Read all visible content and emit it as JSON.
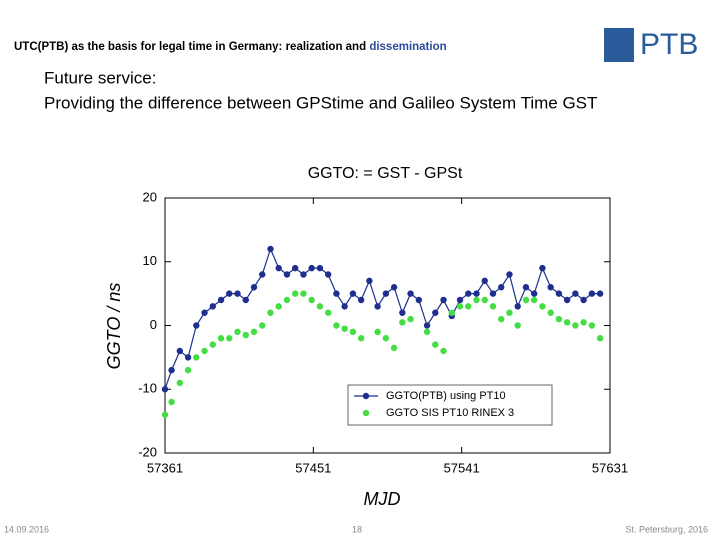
{
  "header": {
    "title": "UTC(PTB) as the basis for legal time in Germany: realization and ",
    "highlight": "dissemination",
    "logo": "PTB"
  },
  "subtitle": [
    "Future service:",
    "Providing the difference between GPStime and Galileo System Time GST"
  ],
  "footer": {
    "date": "14.09.2016",
    "page": "18",
    "place": "St. Petersburg, 2016"
  },
  "chart_data": {
    "type": "scatter",
    "title": "GGTO: = GST - GPSt",
    "xlabel": "MJD",
    "ylabel": "GGTO / ns",
    "x": [
      57361,
      57365,
      57370,
      57375,
      57380,
      57385,
      57390,
      57395,
      57400,
      57405,
      57410,
      57415,
      57420,
      57425,
      57430,
      57435,
      57440,
      57445,
      57450,
      57455,
      57460,
      57465,
      57470,
      57475,
      57480,
      57485,
      57490,
      57495,
      57500,
      57505,
      57510,
      57515,
      57520,
      57525,
      57530,
      57535,
      57540,
      57545,
      57550,
      57555,
      57560,
      57565,
      57570,
      57575,
      57580,
      57585,
      57590,
      57595,
      57600,
      57605,
      57610,
      57615,
      57620,
      57625
    ],
    "series": [
      {
        "name": "GGTO(PTB) using PT10",
        "color": "#1f2f8f",
        "line": true,
        "values": [
          -10,
          -7,
          -4,
          -5,
          0,
          2,
          3,
          4,
          5,
          5,
          4,
          6,
          8,
          12,
          9,
          8,
          9,
          8,
          9,
          9,
          8,
          5,
          3,
          5,
          4,
          7,
          3,
          5,
          6,
          2,
          5,
          4,
          0,
          2,
          4,
          1.5,
          4,
          5,
          5,
          7,
          5,
          6,
          8,
          3,
          6,
          5,
          9,
          6,
          5,
          4,
          5,
          4,
          5,
          5
        ]
      },
      {
        "name": "GGTO SIS PT10 RINEX 3",
        "color": "#44dd44",
        "line": false,
        "values": [
          -14,
          -12,
          -9,
          -7,
          -5,
          -4,
          -3,
          -2,
          -2,
          -1,
          -1.5,
          -1,
          0,
          2,
          3,
          4,
          5,
          5,
          4,
          3,
          2,
          0,
          -0.5,
          -1,
          -2,
          null,
          -1,
          -2,
          -3.5,
          0.5,
          1,
          null,
          -1,
          -3,
          -4,
          2,
          3,
          3,
          4,
          4,
          3,
          1,
          2,
          0,
          4,
          4,
          3,
          2,
          1,
          0.5,
          0,
          0.5,
          0,
          -2
        ]
      }
    ],
    "xlim": [
      57361,
      57631
    ],
    "xticks": [
      57361,
      57451,
      57541,
      57631
    ],
    "ylim": [
      -20,
      20
    ],
    "yticks": [
      -20,
      -10,
      0,
      10,
      20
    ],
    "grid": false,
    "legend": "lower right"
  }
}
